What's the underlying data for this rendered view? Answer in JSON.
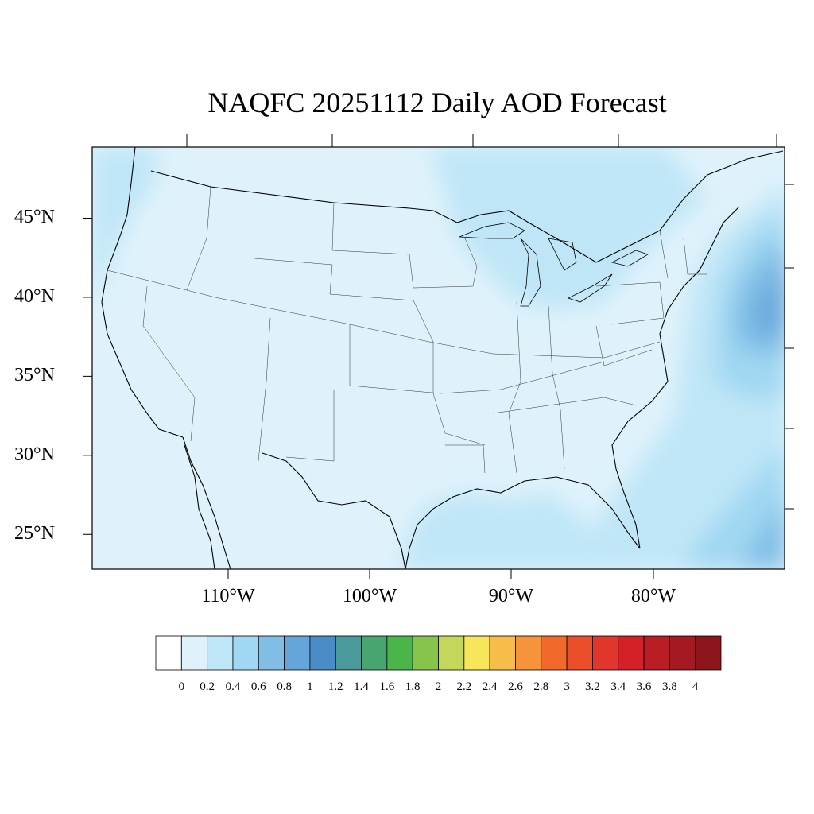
{
  "title": "NAQFC 20251112 Daily AOD Forecast",
  "map": {
    "lat_labels": [
      "45°N",
      "40°N",
      "35°N",
      "30°N",
      "25°N"
    ],
    "lat_values": [
      45,
      40,
      35,
      30,
      25
    ],
    "lon_labels": [
      "110°W",
      "100°W",
      "90°W",
      "80°W"
    ],
    "lon_values": [
      -110,
      -100,
      -90,
      -80
    ],
    "extent": {
      "lon_min": -119.5,
      "lon_max": -70.5,
      "lat_min": 22.8,
      "lat_max": 49.5
    }
  },
  "colorbar": {
    "labels": [
      "0",
      "0.2",
      "0.4",
      "0.6",
      "0.8",
      "1",
      "1.2",
      "1.4",
      "1.6",
      "1.8",
      "2",
      "2.2",
      "2.4",
      "2.6",
      "2.8",
      "3",
      "3.2",
      "3.4",
      "3.6",
      "3.8",
      "4"
    ],
    "colors": [
      "#ffffff",
      "#dff2fb",
      "#bfe6f7",
      "#a0d7f2",
      "#80bee6",
      "#65a6da",
      "#4a8cc8",
      "#4a9a9c",
      "#47a670",
      "#4cb549",
      "#87c44b",
      "#c4d75a",
      "#f7e65a",
      "#f7bd4a",
      "#f5943c",
      "#f26a2b",
      "#eb4e2b",
      "#e0362b",
      "#d42128",
      "#bb1d25",
      "#a51a22",
      "#8c161c"
    ]
  },
  "chart_data": {
    "type": "heatmap",
    "title": "NAQFC 20251112 Daily AOD Forecast",
    "xlabel": "",
    "ylabel": "",
    "x_ticks": [
      "110°W",
      "100°W",
      "90°W",
      "80°W"
    ],
    "y_ticks": [
      "45°N",
      "40°N",
      "35°N",
      "30°N",
      "25°N"
    ],
    "value_range": [
      0,
      4
    ],
    "colorbar_levels": [
      0,
      0.2,
      0.4,
      0.6,
      0.8,
      1,
      1.2,
      1.4,
      1.6,
      1.8,
      2,
      2.2,
      2.4,
      2.6,
      2.8,
      3,
      3.2,
      3.4,
      3.6,
      3.8,
      4
    ],
    "dominant_range_over_land": [
      0,
      0.2
    ],
    "max_region": "Atlantic offshore of mid-Atlantic / northeast and near Bahamas",
    "max_range": [
      0.6,
      1.0
    ]
  }
}
